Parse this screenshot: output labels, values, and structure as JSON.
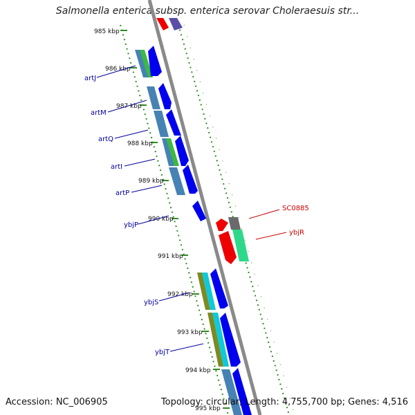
{
  "title": "Salmonella enterica subsp. enterica serovar Choleraesuis str...",
  "footer": {
    "accession": "Accession: NC_006905",
    "summary": "Topology: circular; Length: 4,755,700 bp; Genes: 4,516"
  },
  "colors": {
    "axis": "#8a8a8a",
    "ruler_tick": "#2e8b22",
    "label_blue": "#00009a",
    "label_red": "#cc0000",
    "forward_gene": "#0000ee",
    "red_gene": "#ee0000",
    "steelblue": "#4682b4",
    "green": "#3cb844",
    "cyan": "#10c8d8",
    "olive": "#7b8b22",
    "seagreen": "#2ed88a",
    "gray": "#6a6a6a",
    "slate": "#5a4ea8"
  },
  "ruler": [
    "985 kbp",
    "986 kbp",
    "987 kbp",
    "988 kbp",
    "989 kbp",
    "990 kbp",
    "991 kbp",
    "992 kbp",
    "993 kbp",
    "994 kbp",
    "995 kbp"
  ],
  "gene_labels_left": [
    "artJ",
    "artM",
    "artQ",
    "artI",
    "artP",
    "ybjP",
    "ybjS",
    "ybjT"
  ],
  "gene_labels_right": [
    "SC0885",
    "ybjR"
  ]
}
